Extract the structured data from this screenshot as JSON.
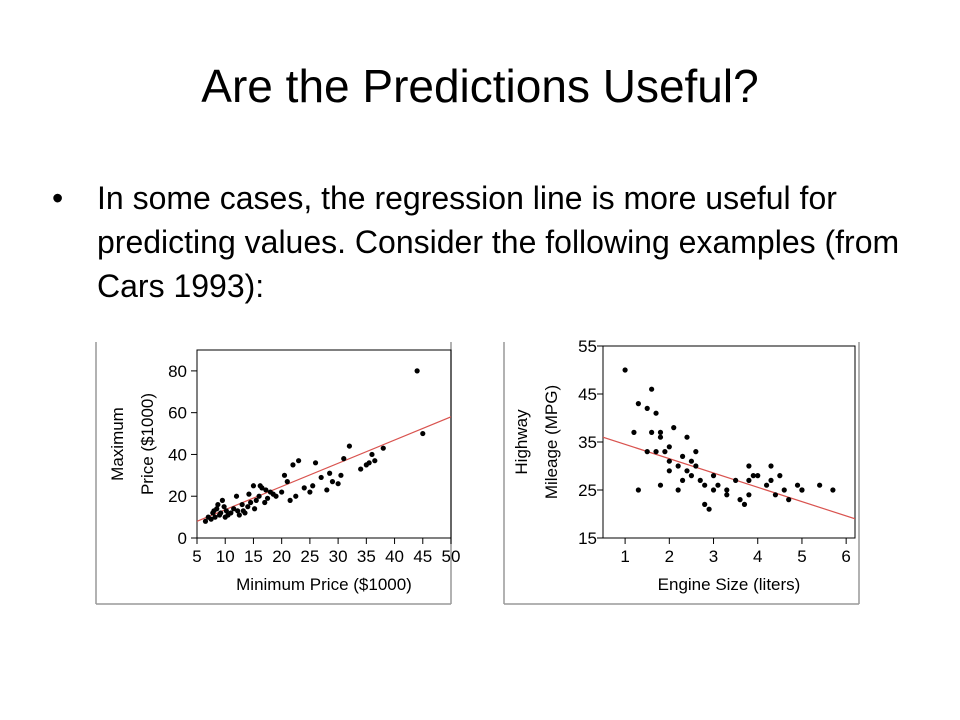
{
  "slide": {
    "title": "Are the Predictions Useful?",
    "bullet_marker": "•",
    "bullet_text": "In some cases, the regression line is more useful for predicting values. Consider the following examples (from Cars 1993):"
  },
  "colors": {
    "points": "#000000",
    "regression_line": "#d9534f",
    "frame": "#000000",
    "panel_border": "#999999"
  },
  "chart_data": [
    {
      "type": "scatter",
      "title": "",
      "xlabel": "Minimum Price ($1000)",
      "ylabel_lines": [
        "Maximum",
        "Price ($1000)"
      ],
      "xlim": [
        5,
        50
      ],
      "ylim": [
        0,
        90
      ],
      "xticks": [
        5,
        10,
        15,
        20,
        25,
        30,
        35,
        40,
        45,
        50
      ],
      "xtick_labels": [
        "5",
        "10",
        "15",
        "20",
        "25",
        "30",
        "35",
        "40",
        "45",
        "50"
      ],
      "yticks": [
        0,
        20,
        40,
        60,
        80
      ],
      "ytick_labels": [
        "0",
        "20",
        "40",
        "60",
        "80"
      ],
      "grid": false,
      "regression_line": {
        "x": [
          5,
          50
        ],
        "y": [
          8,
          58
        ]
      },
      "points": [
        [
          6.5,
          8
        ],
        [
          7,
          10
        ],
        [
          7.5,
          9
        ],
        [
          7.8,
          12
        ],
        [
          8,
          13
        ],
        [
          8.2,
          10
        ],
        [
          8.5,
          14
        ],
        [
          8.7,
          16
        ],
        [
          9,
          11
        ],
        [
          9.2,
          12
        ],
        [
          9.5,
          18
        ],
        [
          9.8,
          15
        ],
        [
          10,
          10
        ],
        [
          10.2,
          13
        ],
        [
          10.5,
          11
        ],
        [
          11,
          12
        ],
        [
          11.5,
          14
        ],
        [
          12,
          20
        ],
        [
          12.2,
          13
        ],
        [
          12.5,
          11
        ],
        [
          13,
          16
        ],
        [
          13.2,
          13
        ],
        [
          13.5,
          12
        ],
        [
          14,
          15
        ],
        [
          14.2,
          21
        ],
        [
          14.5,
          17
        ],
        [
          15,
          25
        ],
        [
          15.2,
          14
        ],
        [
          15.5,
          18
        ],
        [
          16,
          20
        ],
        [
          16.2,
          25
        ],
        [
          16.5,
          24
        ],
        [
          17,
          17
        ],
        [
          17.2,
          23
        ],
        [
          17.5,
          19
        ],
        [
          18,
          22
        ],
        [
          18.5,
          21
        ],
        [
          19,
          20
        ],
        [
          20,
          22
        ],
        [
          20.5,
          30
        ],
        [
          21,
          27
        ],
        [
          21.5,
          18
        ],
        [
          22,
          35
        ],
        [
          22.5,
          20
        ],
        [
          23,
          37
        ],
        [
          24,
          24
        ],
        [
          25,
          22
        ],
        [
          25.5,
          25
        ],
        [
          26,
          36
        ],
        [
          27,
          29
        ],
        [
          28,
          23
        ],
        [
          28.5,
          31
        ],
        [
          29,
          27
        ],
        [
          30,
          26
        ],
        [
          30.5,
          30
        ],
        [
          31,
          38
        ],
        [
          32,
          44
        ],
        [
          34,
          33
        ],
        [
          35,
          35
        ],
        [
          35.5,
          36
        ],
        [
          36,
          40
        ],
        [
          36.5,
          37
        ],
        [
          38,
          43
        ],
        [
          44,
          80
        ],
        [
          45,
          50
        ]
      ]
    },
    {
      "type": "scatter",
      "title": "",
      "xlabel": "Engine Size (liters)",
      "ylabel_lines": [
        "Highway",
        "Mileage (MPG)"
      ],
      "xlim": [
        0.5,
        6.2
      ],
      "ylim": [
        15,
        55
      ],
      "xticks": [
        1,
        2,
        3,
        4,
        5,
        6
      ],
      "xtick_labels": [
        "1",
        "2",
        "3",
        "4",
        "5",
        "6"
      ],
      "yticks": [
        15,
        25,
        35,
        45,
        55
      ],
      "ytick_labels": [
        "15",
        "25",
        "35",
        "45",
        "55"
      ],
      "grid": false,
      "regression_line": {
        "x": [
          0.5,
          6.2
        ],
        "y": [
          36,
          19
        ]
      },
      "points": [
        [
          1.0,
          50
        ],
        [
          1.2,
          37
        ],
        [
          1.3,
          43
        ],
        [
          1.3,
          25
        ],
        [
          1.5,
          42
        ],
        [
          1.5,
          33
        ],
        [
          1.6,
          37
        ],
        [
          1.6,
          46
        ],
        [
          1.7,
          41
        ],
        [
          1.7,
          33
        ],
        [
          1.8,
          36
        ],
        [
          1.8,
          26
        ],
        [
          1.8,
          37
        ],
        [
          1.9,
          33
        ],
        [
          2.0,
          31
        ],
        [
          2.0,
          29
        ],
        [
          2.0,
          34
        ],
        [
          2.1,
          38
        ],
        [
          2.2,
          30
        ],
        [
          2.2,
          25
        ],
        [
          2.3,
          32
        ],
        [
          2.3,
          27
        ],
        [
          2.4,
          36
        ],
        [
          2.4,
          29
        ],
        [
          2.5,
          31
        ],
        [
          2.5,
          28
        ],
        [
          2.6,
          30
        ],
        [
          2.6,
          33
        ],
        [
          2.7,
          27
        ],
        [
          2.8,
          22
        ],
        [
          2.8,
          26
        ],
        [
          2.9,
          21
        ],
        [
          3.0,
          28
        ],
        [
          3.0,
          25
        ],
        [
          3.1,
          26
        ],
        [
          3.3,
          25
        ],
        [
          3.3,
          24
        ],
        [
          3.5,
          27
        ],
        [
          3.6,
          23
        ],
        [
          3.7,
          22
        ],
        [
          3.8,
          24
        ],
        [
          3.8,
          27
        ],
        [
          3.8,
          30
        ],
        [
          3.9,
          28
        ],
        [
          4.0,
          28
        ],
        [
          4.2,
          26
        ],
        [
          4.3,
          30
        ],
        [
          4.3,
          27
        ],
        [
          4.4,
          24
        ],
        [
          4.5,
          28
        ],
        [
          4.6,
          25
        ],
        [
          4.7,
          23
        ],
        [
          4.9,
          26
        ],
        [
          5.0,
          25
        ],
        [
          5.0,
          25
        ],
        [
          5.4,
          26
        ],
        [
          5.7,
          25
        ]
      ]
    }
  ]
}
